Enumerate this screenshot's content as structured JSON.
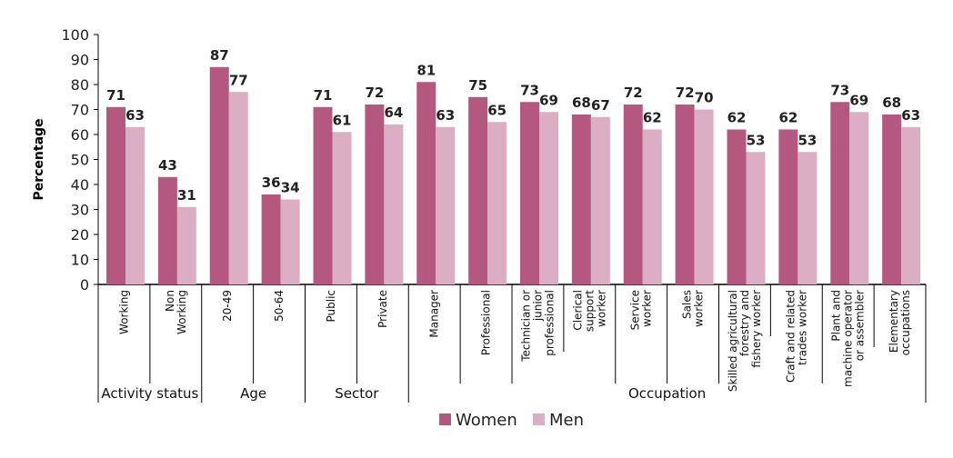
{
  "chart_data": {
    "type": "bar",
    "ylabel": "Percentage",
    "ylim": [
      0,
      100
    ],
    "yticks": [
      0,
      10,
      20,
      30,
      40,
      50,
      60,
      70,
      80,
      90,
      100
    ],
    "grid": false,
    "legend_position": "bottom",
    "categories": [
      "Working",
      "Non Working",
      "20-49",
      "50-64",
      "Public",
      "Private",
      "Manager",
      "Professional",
      "Technician or junior professional",
      "Clerical support worker",
      "Service worker",
      "Sales worker",
      "Skilled agricultural forestry and fishery worker",
      "Craft and related trades worker",
      "Plant and machine operator or assembler",
      "Elementary occupations"
    ],
    "category_lines": [
      [
        "Working"
      ],
      [
        "Non",
        "Working"
      ],
      [
        "20-49"
      ],
      [
        "50-64"
      ],
      [
        "Public"
      ],
      [
        "Private"
      ],
      [
        "Manager"
      ],
      [
        "Professional"
      ],
      [
        "Technician or",
        "junior",
        "professional"
      ],
      [
        "Clerical",
        "support",
        "worker"
      ],
      [
        "Service",
        "worker"
      ],
      [
        "Sales",
        "worker"
      ],
      [
        "Skilled agricultural",
        "forestry and",
        "fishery worker"
      ],
      [
        "Craft and related",
        "trades worker"
      ],
      [
        "Plant and",
        "machine operator",
        "or assembler"
      ],
      [
        "Elementary",
        "occupations"
      ]
    ],
    "groups": [
      {
        "label": "Activity status",
        "start": 0,
        "end": 2
      },
      {
        "label": "Age",
        "start": 2,
        "end": 4
      },
      {
        "label": "Sector",
        "start": 4,
        "end": 6
      },
      {
        "label": "Occupation",
        "start": 6,
        "end": 16
      }
    ],
    "series": [
      {
        "name": "Women",
        "color": "#b5587f",
        "values": [
          71,
          43,
          87,
          36,
          71,
          72,
          81,
          75,
          73,
          68,
          72,
          72,
          62,
          62,
          73,
          68
        ]
      },
      {
        "name": "Men",
        "color": "#dcaec4",
        "values": [
          63,
          31,
          77,
          34,
          61,
          64,
          63,
          65,
          69,
          67,
          62,
          70,
          53,
          53,
          69,
          63
        ]
      }
    ]
  }
}
